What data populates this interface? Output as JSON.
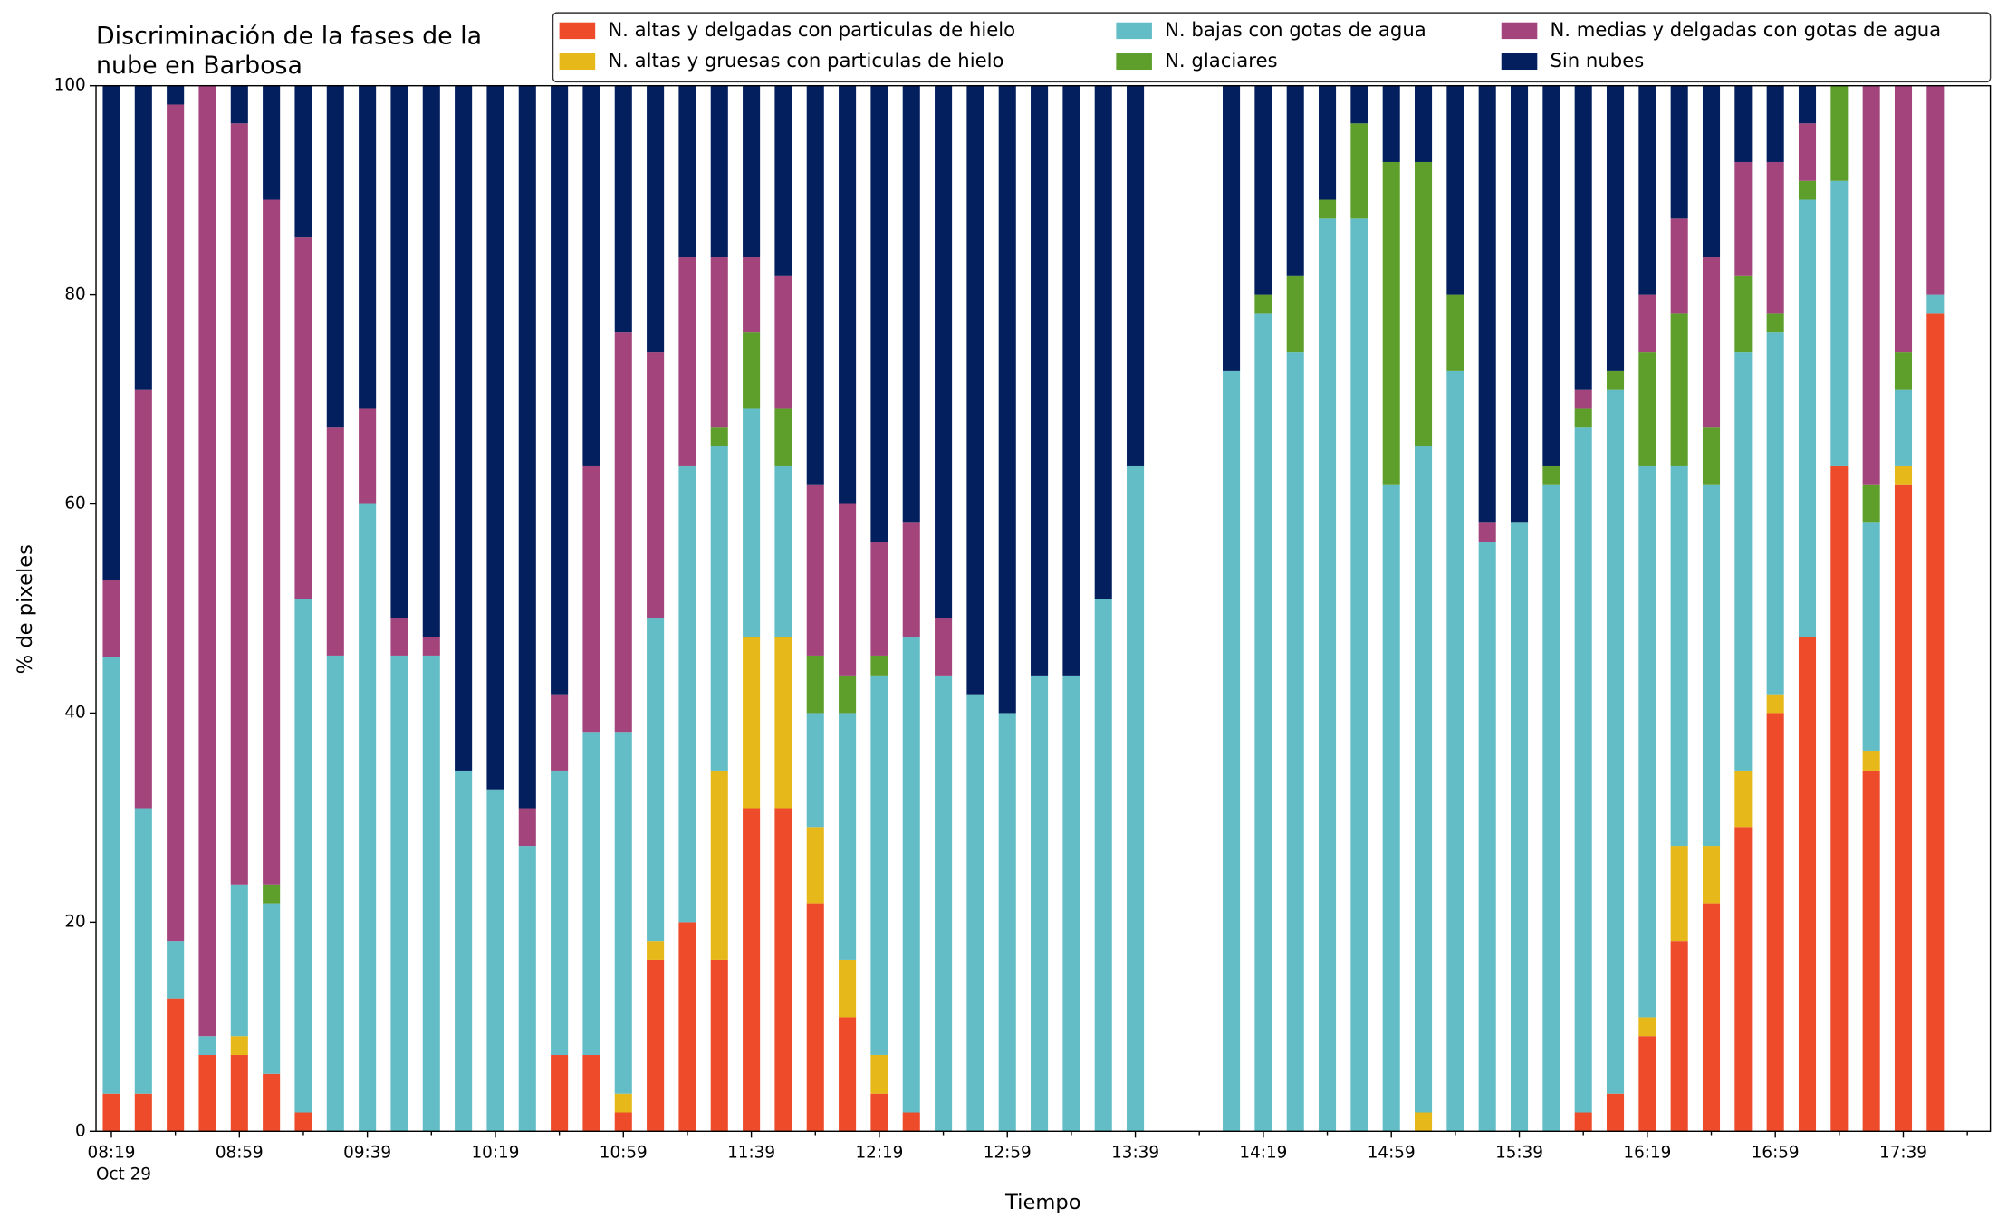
{
  "chart_data": {
    "type": "stacked_bar",
    "title": [
      "Discriminación de la fases de la",
      "nube en Barbosa"
    ],
    "x_label": "Tiempo",
    "y_label": "% de pixeles",
    "x_sublabel": "Oct 29",
    "categories": [
      "08:19",
      null,
      null,
      null,
      "08:59",
      null,
      null,
      null,
      "09:39",
      null,
      null,
      null,
      "10:19",
      null,
      null,
      null,
      "10:59",
      null,
      null,
      null,
      "11:39",
      null,
      null,
      null,
      "12:19",
      null,
      null,
      null,
      "12:59",
      null,
      null,
      null,
      "13:39",
      null,
      null,
      null,
      "14:19",
      null,
      null,
      null,
      "14:59",
      null,
      null,
      null,
      "15:39",
      null,
      null,
      null,
      "16:19",
      null,
      null,
      null,
      "16:59",
      null,
      null,
      null,
      "17:39",
      null
    ],
    "ylim": [
      0,
      100
    ],
    "yticks": [
      0,
      20,
      40,
      60,
      80,
      100
    ],
    "legend": "upper right",
    "series": [
      {
        "name": "N. altas y delgadas con particulas de hielo",
        "color": "#ee4b2b",
        "values": [
          3.6,
          3.6,
          12.7,
          7.3,
          7.3,
          5.5,
          1.8,
          0,
          0,
          0,
          0,
          0,
          0,
          0,
          7.3,
          7.3,
          1.8,
          16.4,
          20,
          16.4,
          30.9,
          30.9,
          21.8,
          10.9,
          3.6,
          1.8,
          0,
          0,
          0,
          0,
          0,
          0,
          0,
          null,
          null,
          0,
          0,
          0,
          0,
          0,
          0,
          0,
          0,
          0,
          0,
          0,
          1.8,
          3.6,
          9.1,
          18.2,
          21.8,
          29.1,
          40,
          47.3,
          63.6,
          34.5,
          61.8,
          78.2
        ]
      },
      {
        "name": "N. altas y gruesas con particulas de hielo",
        "color": "#e6b81a",
        "values": [
          0,
          0,
          0,
          0,
          1.8,
          0,
          0,
          0,
          0,
          0,
          0,
          0,
          0,
          0,
          0,
          0,
          1.8,
          1.8,
          0,
          18.1,
          16.4,
          16.4,
          7.3,
          5.5,
          3.7,
          0,
          0,
          0,
          0,
          0,
          0,
          0,
          0,
          null,
          null,
          0,
          0,
          0,
          0,
          0,
          0,
          1.8,
          0,
          0,
          0,
          0,
          0,
          0,
          1.8,
          9.1,
          5.5,
          5.4,
          1.8,
          0,
          0,
          1.9,
          1.8,
          0
        ]
      },
      {
        "name": "N. bajas con gotas de agua",
        "color": "#63bdc7",
        "values": [
          41.8,
          27.3,
          5.5,
          1.8,
          14.5,
          16.3,
          49.1,
          45.5,
          60,
          45.5,
          45.5,
          34.5,
          32.7,
          27.3,
          27.2,
          30.9,
          34.6,
          30.9,
          43.6,
          31,
          21.8,
          16.3,
          10.9,
          23.6,
          36.3,
          45.5,
          43.6,
          41.8,
          40,
          43.6,
          43.6,
          50.9,
          63.6,
          null,
          null,
          72.7,
          78.2,
          74.5,
          87.3,
          87.3,
          61.8,
          63.7,
          72.7,
          56.4,
          58.2,
          61.8,
          65.5,
          67.3,
          52.7,
          36.3,
          34.5,
          40,
          34.6,
          41.8,
          27.3,
          21.8,
          7.3,
          1.8
        ]
      },
      {
        "name": "N. glaciares",
        "color": "#5e9f2c",
        "values": [
          0,
          0,
          0,
          0,
          0,
          1.8,
          0,
          0,
          0,
          0,
          0,
          0,
          0,
          0,
          0,
          0,
          0,
          0,
          0,
          1.8,
          7.3,
          5.5,
          5.5,
          3.6,
          1.9,
          0,
          0,
          0,
          0,
          0,
          0,
          0,
          0,
          null,
          null,
          0,
          1.8,
          7.3,
          1.8,
          9.1,
          30.9,
          27.2,
          7.3,
          0,
          0,
          1.8,
          1.8,
          1.8,
          10.9,
          14.6,
          5.5,
          7.3,
          1.8,
          1.8,
          9.1,
          3.6,
          3.6,
          0
        ]
      },
      {
        "name": "N. medias y delgadas con gotas de agua",
        "color": "#a3457c",
        "values": [
          7.3,
          40,
          80,
          90.9,
          72.8,
          65.5,
          34.6,
          21.8,
          9.1,
          3.6,
          1.8,
          0,
          0,
          3.6,
          7.3,
          25.4,
          38.2,
          25.4,
          20,
          16.3,
          7.2,
          12.7,
          16.3,
          16.4,
          10.9,
          10.9,
          5.5,
          0,
          0,
          0,
          0,
          0,
          0,
          null,
          null,
          0,
          0,
          0,
          0,
          0,
          0,
          0,
          0,
          1.8,
          0,
          0,
          1.8,
          0,
          5.5,
          9.1,
          16.3,
          10.9,
          14.5,
          5.5,
          0,
          38.2,
          25.5,
          20
        ]
      },
      {
        "name": "Sin nubes",
        "color": "#031f5e",
        "values": [
          47.3,
          29.1,
          1.8,
          0,
          3.6,
          10.9,
          14.5,
          32.7,
          30.9,
          50.9,
          52.7,
          65.5,
          67.3,
          69.1,
          58.2,
          36.4,
          23.6,
          25.5,
          16.4,
          16.4,
          16.4,
          18.2,
          38.2,
          40,
          43.6,
          41.8,
          50.9,
          58.2,
          60,
          56.4,
          56.4,
          49.1,
          36.4,
          null,
          null,
          27.3,
          20,
          18.2,
          10.9,
          3.6,
          7.3,
          7.3,
          20,
          41.8,
          41.8,
          36.4,
          29.1,
          27.3,
          20,
          12.7,
          16.4,
          7.3,
          7.3,
          3.6,
          0,
          0,
          0,
          0
        ]
      }
    ]
  }
}
